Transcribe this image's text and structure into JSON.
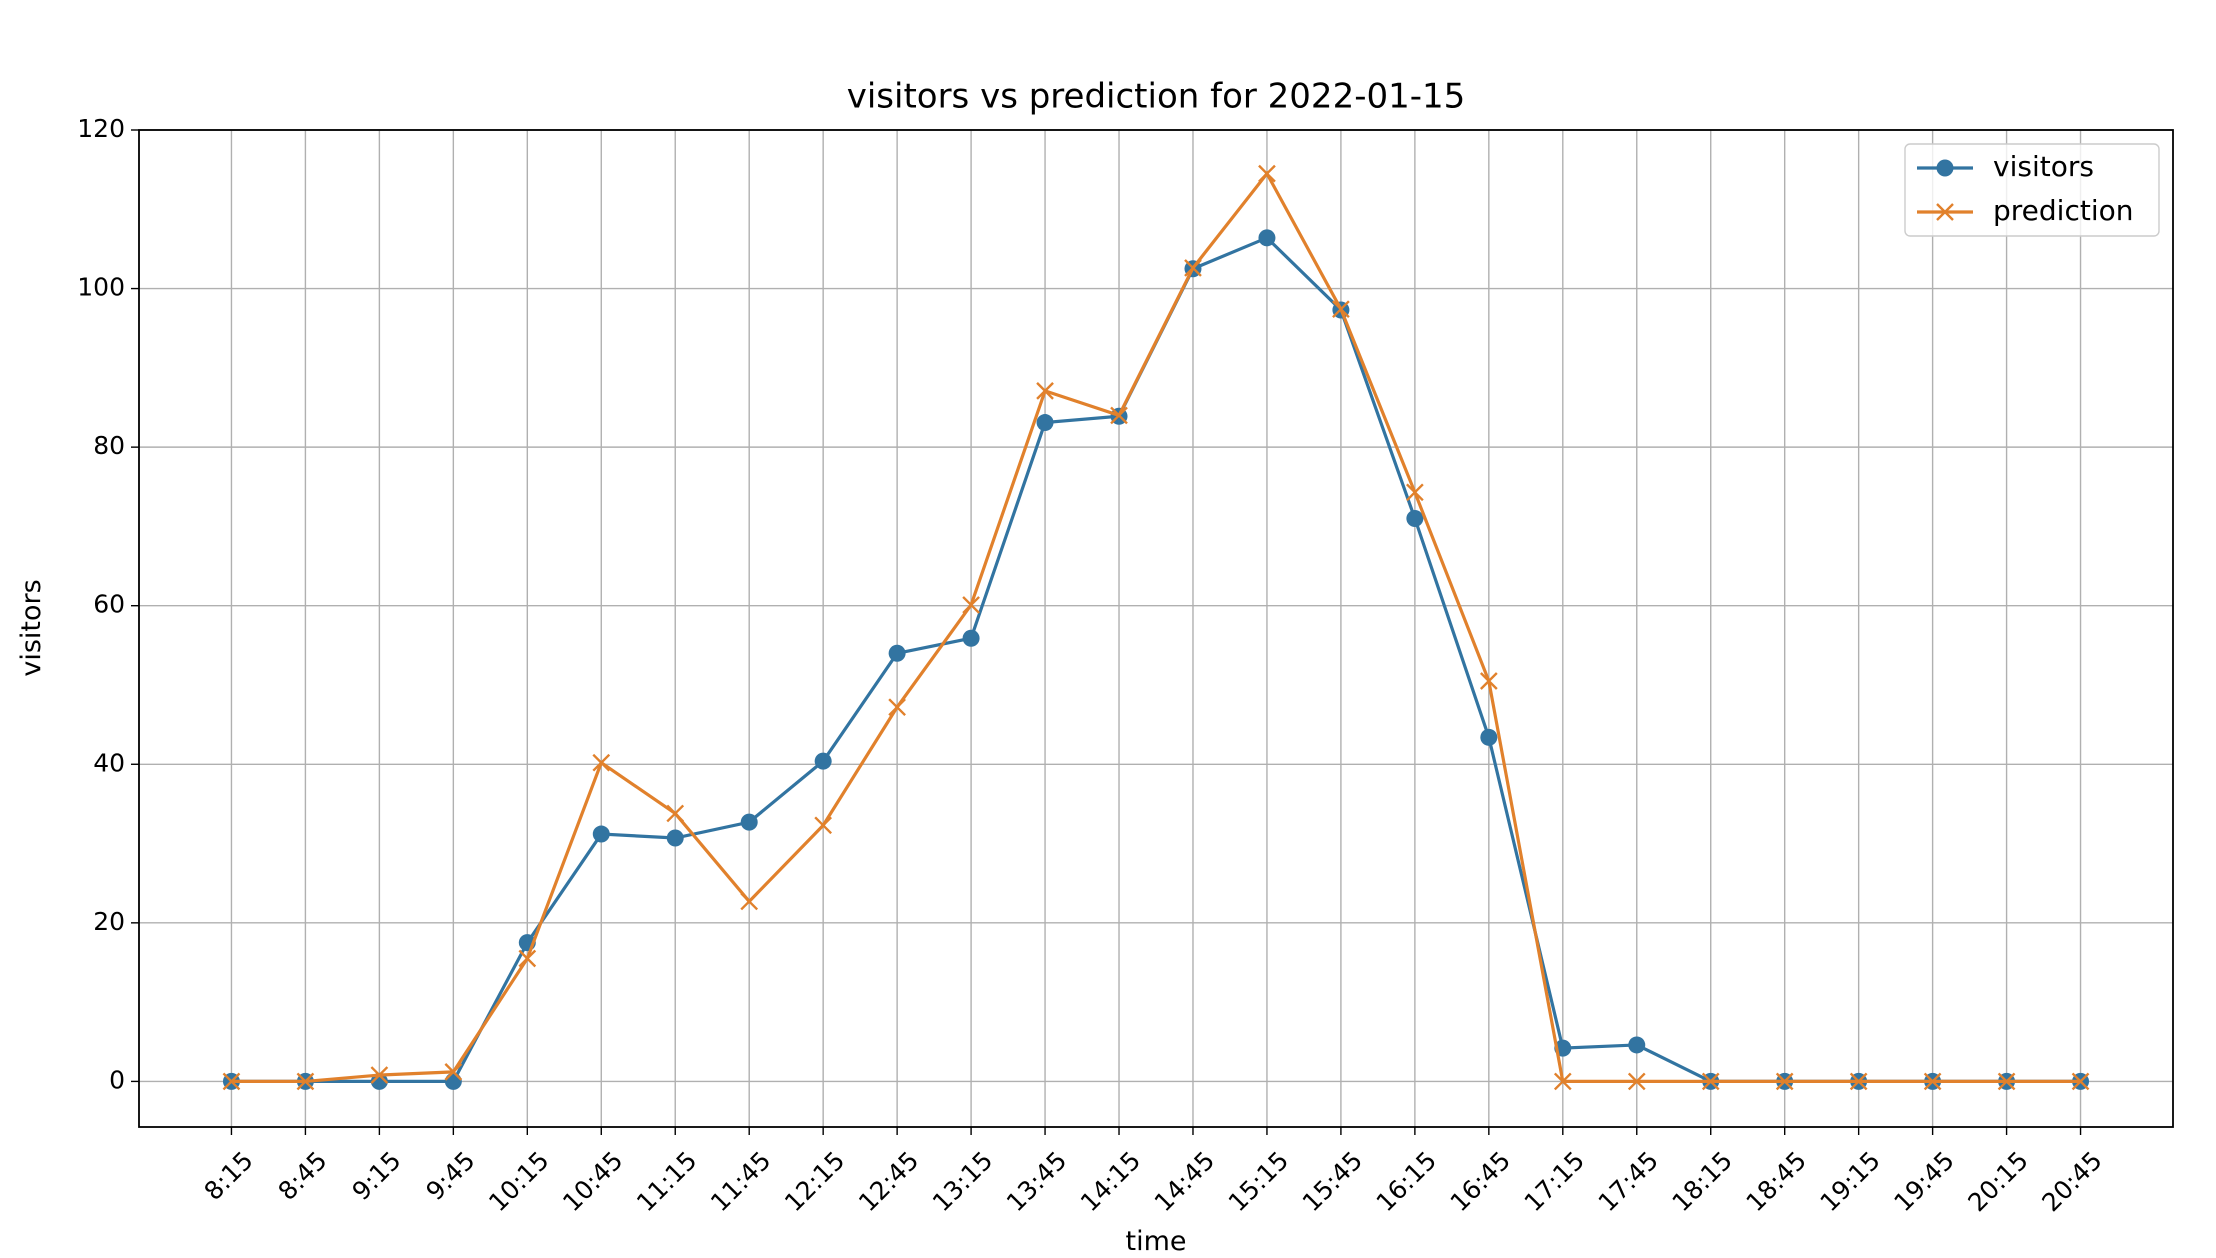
{
  "chart_data": {
    "type": "line",
    "title": "visitors vs prediction for 2022-01-15",
    "x_label": "time",
    "y_label": "visitors",
    "categories": [
      "8:15",
      "8:45",
      "9:15",
      "9:45",
      "10:15",
      "10:45",
      "11:15",
      "11:45",
      "12:15",
      "12:45",
      "13:15",
      "13:45",
      "14:15",
      "14:45",
      "15:15",
      "15:45",
      "16:15",
      "16:45",
      "17:15",
      "17:45",
      "18:15",
      "18:45",
      "19:15",
      "19:45",
      "20:15",
      "20:45"
    ],
    "series": [
      {
        "name": "visitors",
        "color": "#3274a1",
        "marker": "o",
        "values": [
          0,
          0,
          0,
          0,
          17.5,
          31.2,
          30.7,
          32.7,
          40.4,
          54,
          55.9,
          83.1,
          83.9,
          102.5,
          106.4,
          97.3,
          71,
          43.4,
          4.2,
          4.6,
          0,
          0,
          0,
          0,
          0,
          0
        ]
      },
      {
        "name": "prediction",
        "color": "#e1812c",
        "marker": "x",
        "values": [
          0,
          0,
          0.8,
          1.2,
          15.5,
          40.2,
          33.8,
          22.7,
          32.3,
          47.2,
          60.1,
          87.1,
          84,
          102.6,
          114.5,
          97.4,
          74.3,
          50.5,
          0,
          0,
          0,
          0,
          0,
          0,
          0,
          0
        ]
      }
    ],
    "ylim": [
      -5.75,
      120
    ],
    "yticks": [
      0,
      20,
      40,
      60,
      80,
      100,
      120
    ],
    "grid": true,
    "legend": "upper right"
  }
}
